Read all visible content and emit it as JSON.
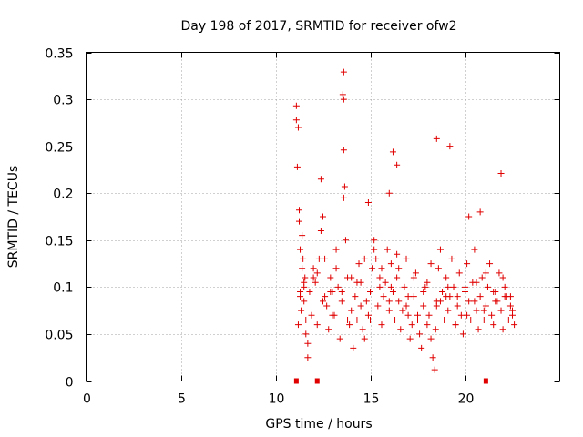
{
  "chart_data": {
    "type": "scatter",
    "title": "Day 198 of 2017, SRMTID for receiver ofw2",
    "xlabel": "GPS time / hours",
    "ylabel": "SRMTID / TECUs",
    "xlim": [
      0,
      25
    ],
    "ylim": [
      0,
      0.35
    ],
    "x_ticks": [
      0,
      5,
      10,
      15,
      20
    ],
    "x_tick_labels": [
      "0",
      "5",
      "10",
      "15",
      "20"
    ],
    "y_ticks": [
      0,
      0.05,
      0.1,
      0.15,
      0.2,
      0.25,
      0.3,
      0.35
    ],
    "y_tick_labels": [
      "0",
      "0.05",
      "0.1",
      "0.15",
      "0.2",
      "0.25",
      "0.3",
      "0.35"
    ],
    "grid": true,
    "colors": {
      "series": "#e00000",
      "marker_zero": "#e00000",
      "grid": "#a0a0a0",
      "axis": "#000000"
    },
    "series": [
      {
        "name": "SRMTID",
        "marker": "plus",
        "x": [
          11.1,
          11.1,
          11.2,
          11.15,
          11.25,
          11.3,
          11.4,
          11.5,
          11.35,
          11.6,
          11.2,
          11.3,
          11.45,
          11.55,
          11.25,
          11.4,
          11.5,
          11.6,
          11.7,
          11.8,
          11.9,
          12.0,
          12.1,
          12.2,
          12.3,
          12.4,
          12.5,
          12.6,
          12.7,
          12.8,
          12.9,
          13.0,
          13.1,
          13.2,
          13.3,
          13.4,
          13.5,
          13.6,
          13.55,
          13.6,
          13.6,
          13.6,
          13.65,
          13.7,
          13.8,
          13.9,
          14.0,
          14.1,
          14.2,
          14.3,
          14.4,
          14.5,
          14.6,
          14.7,
          14.8,
          14.9,
          15.0,
          15.1,
          15.2,
          15.3,
          15.4,
          15.5,
          15.6,
          15.7,
          15.8,
          15.9,
          16.0,
          16.1,
          16.2,
          16.3,
          16.4,
          16.5,
          16.6,
          16.7,
          16.8,
          16.9,
          17.0,
          17.1,
          17.2,
          17.3,
          17.4,
          17.5,
          17.6,
          17.7,
          17.8,
          17.9,
          18.0,
          18.1,
          18.2,
          18.3,
          18.4,
          18.45,
          18.5,
          18.6,
          18.7,
          18.8,
          18.9,
          19.0,
          19.1,
          19.2,
          19.3,
          19.4,
          19.5,
          19.6,
          19.7,
          19.8,
          19.9,
          20.0,
          20.1,
          20.2,
          20.3,
          20.4,
          20.5,
          20.6,
          20.7,
          20.8,
          20.9,
          21.0,
          21.1,
          21.2,
          21.3,
          21.4,
          21.5,
          21.6,
          21.7,
          21.8,
          21.9,
          22.0,
          22.1,
          22.2,
          22.3,
          22.4,
          22.5,
          22.6,
          11.3,
          11.7,
          12.2,
          12.6,
          12.9,
          13.2,
          13.8,
          14.3,
          14.7,
          15.2,
          15.6,
          16.1,
          16.4,
          16.9,
          17.3,
          17.8,
          18.2,
          18.7,
          19.1,
          19.6,
          20.1,
          20.6,
          21.1,
          21.6,
          22.1,
          22.5,
          11.5,
          12.0,
          12.5,
          13.0,
          13.5,
          14.0,
          14.5,
          15.0,
          15.5,
          16.0,
          16.5,
          17.0,
          17.5,
          18.0,
          18.5,
          19.0,
          19.5,
          20.0,
          20.5,
          21.0,
          21.5,
          22.0,
          22.4,
          16.2,
          16.4,
          18.5,
          19.2,
          12.4,
          21.9,
          14.9,
          16.0,
          20.2,
          20.8
        ],
        "y": [
          0.293,
          0.278,
          0.27,
          0.228,
          0.182,
          0.14,
          0.12,
          0.1,
          0.075,
          0.05,
          0.06,
          0.09,
          0.13,
          0.11,
          0.17,
          0.155,
          0.085,
          0.065,
          0.04,
          0.095,
          0.07,
          0.12,
          0.105,
          0.06,
          0.13,
          0.16,
          0.175,
          0.09,
          0.08,
          0.055,
          0.11,
          0.095,
          0.07,
          0.12,
          0.1,
          0.045,
          0.085,
          0.329,
          0.305,
          0.3,
          0.246,
          0.195,
          0.207,
          0.15,
          0.11,
          0.06,
          0.075,
          0.035,
          0.09,
          0.065,
          0.125,
          0.105,
          0.055,
          0.045,
          0.085,
          0.07,
          0.095,
          0.12,
          0.15,
          0.13,
          0.08,
          0.11,
          0.06,
          0.09,
          0.105,
          0.14,
          0.075,
          0.125,
          0.095,
          0.065,
          0.11,
          0.085,
          0.055,
          0.075,
          0.1,
          0.13,
          0.07,
          0.045,
          0.06,
          0.09,
          0.115,
          0.065,
          0.05,
          0.035,
          0.08,
          0.1,
          0.06,
          0.07,
          0.045,
          0.025,
          0.012,
          0.055,
          0.085,
          0.12,
          0.14,
          0.095,
          0.065,
          0.11,
          0.075,
          0.09,
          0.13,
          0.1,
          0.06,
          0.08,
          0.115,
          0.07,
          0.05,
          0.095,
          0.125,
          0.085,
          0.065,
          0.105,
          0.14,
          0.075,
          0.055,
          0.09,
          0.11,
          0.065,
          0.08,
          0.1,
          0.125,
          0.07,
          0.06,
          0.095,
          0.085,
          0.115,
          0.075,
          0.055,
          0.1,
          0.09,
          0.065,
          0.08,
          0.07,
          0.06,
          0.095,
          0.025,
          0.115,
          0.13,
          0.095,
          0.14,
          0.065,
          0.105,
          0.13,
          0.14,
          0.12,
          0.1,
          0.135,
          0.08,
          0.11,
          0.095,
          0.125,
          0.085,
          0.1,
          0.09,
          0.07,
          0.105,
          0.115,
          0.085,
          0.09,
          0.075,
          0.105,
          0.11,
          0.085,
          0.07,
          0.095,
          0.11,
          0.08,
          0.065,
          0.1,
          0.085,
          0.12,
          0.09,
          0.07,
          0.105,
          0.08,
          0.09,
          0.06,
          0.1,
          0.085,
          0.075,
          0.095,
          0.11,
          0.09,
          0.244,
          0.23,
          0.258,
          0.25,
          0.215,
          0.221,
          0.19,
          0.2,
          0.175,
          0.18
        ]
      }
    ],
    "zero_markers_x": [
      11.1,
      12.2,
      21.1
    ]
  }
}
